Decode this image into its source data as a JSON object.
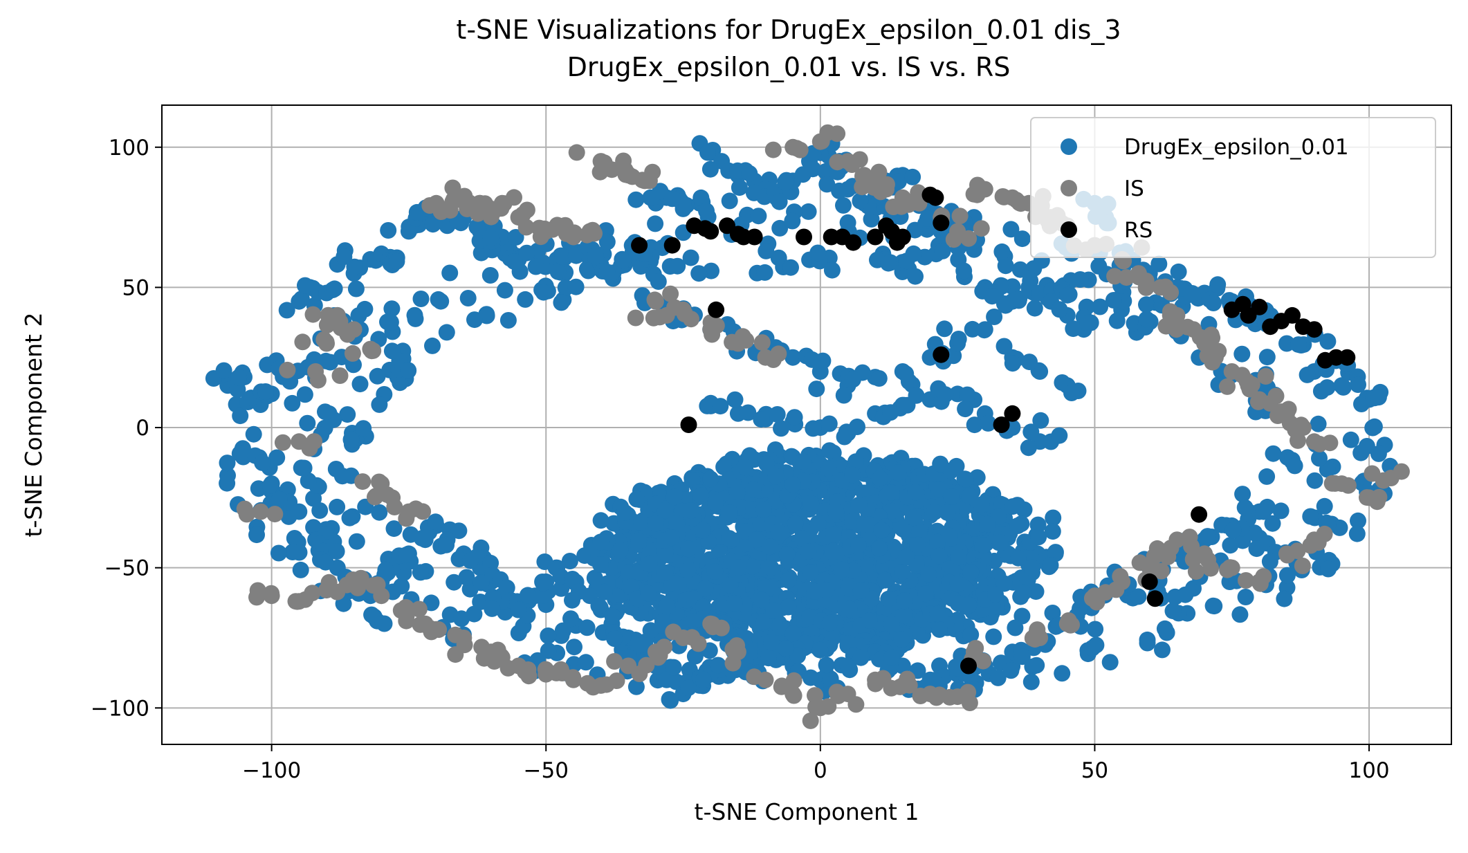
{
  "chart_data": {
    "type": "scatter",
    "title": "t-SNE Visualizations for DrugEx_epsilon_0.01 dis_3",
    "subtitle": "DrugEx_epsilon_0.01 vs. IS vs. RS",
    "xlabel": "t-SNE Component 1",
    "ylabel": "t-SNE Component 2",
    "xlim": [
      -120,
      115
    ],
    "ylim": [
      -113,
      115
    ],
    "xticks": [
      -100,
      -50,
      0,
      50,
      100
    ],
    "xtick_labels": [
      "−100",
      "−50",
      "0",
      "50",
      "100"
    ],
    "yticks": [
      100,
      50,
      0,
      -50,
      -100
    ],
    "ytick_labels": [
      "100",
      "50",
      "0",
      "−50",
      "−100"
    ],
    "grid": true,
    "legend_position": "top-right",
    "series": [
      {
        "name": "DrugEx_epsilon_0.01",
        "color": "#1f77b4",
        "dense_core": {
          "cx": 0,
          "cy": -45,
          "rx": 40,
          "ry": 35
        },
        "ring": {
          "cx": -2,
          "cy": -10,
          "rx": 103,
          "ry": 84
        },
        "x": [
          -108,
          -105,
          -103,
          -100,
          -97,
          -95,
          -93,
          -90,
          -88,
          -85,
          -82,
          -80,
          -78,
          -75,
          -72,
          -70,
          -68,
          -65,
          -62,
          -60,
          -58,
          -55,
          -52,
          -50,
          -48,
          -45,
          -42,
          -40,
          -38,
          -35,
          -32,
          -30,
          -28,
          -25,
          -22,
          -20,
          -18,
          -15,
          -12,
          -10,
          -8,
          -5,
          -2,
          0,
          3,
          5,
          8,
          10,
          12,
          15,
          18,
          20,
          22,
          25,
          28,
          30,
          32,
          35,
          38,
          40,
          42,
          45,
          48,
          50,
          52,
          55,
          60,
          65,
          70,
          75,
          80,
          85,
          90,
          95,
          100,
          -103,
          -100,
          -98,
          -95,
          -92,
          -90,
          -88,
          -85,
          -82,
          -80,
          -78,
          -75,
          -72,
          -70,
          -68,
          -65,
          -62,
          -60,
          -58,
          -55,
          -52,
          -50,
          -48,
          -45,
          -42,
          -40,
          -38,
          -35,
          -32,
          -30,
          -28,
          -25,
          -22,
          -20,
          -15,
          -10,
          -5,
          0,
          5,
          10,
          15,
          20,
          25,
          30,
          35,
          40,
          45,
          50,
          55,
          60,
          65,
          70,
          75,
          80,
          -30,
          -25,
          -20,
          -15,
          -10,
          -5,
          0,
          5,
          10,
          15,
          20,
          25,
          30,
          35,
          40,
          45,
          -20,
          -15,
          -10,
          -5,
          0,
          5,
          10,
          15,
          20,
          25,
          30,
          35,
          40
        ],
        "y": [
          15,
          18,
          10,
          12,
          20,
          45,
          50,
          48,
          40,
          55,
          60,
          62,
          58,
          70,
          75,
          78,
          72,
          75,
          70,
          65,
          68,
          60,
          62,
          58,
          60,
          62,
          60,
          58,
          55,
          60,
          62,
          80,
          82,
          78,
          80,
          98,
          95,
          90,
          88,
          85,
          82,
          88,
          95,
          98,
          92,
          85,
          80,
          82,
          88,
          90,
          80,
          75,
          70,
          72,
          75,
          50,
          48,
          45,
          50,
          48,
          45,
          40,
          35,
          80,
          75,
          60,
          55,
          50,
          48,
          45,
          40,
          30,
          20,
          15,
          10,
          -10,
          -20,
          -25,
          -30,
          -40,
          -45,
          -50,
          -55,
          -60,
          -55,
          -50,
          -45,
          -40,
          -35,
          -40,
          -45,
          -50,
          -55,
          -60,
          -65,
          -60,
          -55,
          -50,
          -55,
          -60,
          -65,
          -70,
          -75,
          -80,
          -85,
          -90,
          -95,
          -92,
          -88,
          -85,
          -80,
          -85,
          -90,
          -85,
          -80,
          -85,
          -90,
          -88,
          -85,
          -80,
          -75,
          -70,
          -60,
          -55,
          -50,
          -45,
          -40,
          -35,
          -30,
          45,
          40,
          35,
          30,
          28,
          25,
          20,
          15,
          18,
          20,
          25,
          30,
          35,
          25,
          20,
          15,
          8,
          5,
          3,
          2,
          0,
          -2,
          5,
          8,
          10,
          12,
          5,
          0,
          -5
        ]
      },
      {
        "name": "IS",
        "color": "#808080",
        "x": [
          -102,
          -95,
          -92,
          -90,
          -88,
          -85,
          -82,
          -80,
          -78,
          -75,
          -70,
          -68,
          -65,
          -62,
          -60,
          -58,
          -55,
          -50,
          -48,
          -45,
          -42,
          -40,
          -38,
          -35,
          -32,
          -30,
          -28,
          -25,
          -20,
          -15,
          -10,
          -5,
          0,
          5,
          8,
          10,
          12,
          15,
          18,
          22,
          25,
          30,
          35,
          38,
          40,
          42,
          45,
          50,
          55,
          58,
          62,
          65,
          68,
          70,
          72,
          75,
          78,
          80,
          85,
          88,
          90,
          95,
          100,
          104,
          -100,
          -95,
          -90,
          -85,
          -80,
          -75,
          -72,
          -70,
          -65,
          -60,
          -58,
          -55,
          -50,
          -45,
          -40,
          -35,
          -30,
          -25,
          -20,
          -15,
          -10,
          -5,
          0,
          5,
          10,
          15,
          20,
          25,
          28,
          40,
          45,
          50,
          55,
          60,
          62,
          65,
          70,
          75,
          80,
          85,
          90
        ],
        "y": [
          -30,
          -5,
          20,
          30,
          40,
          35,
          28,
          -20,
          -25,
          -30,
          80,
          78,
          82,
          80,
          78,
          80,
          75,
          70,
          72,
          68,
          70,
          95,
          92,
          90,
          88,
          45,
          40,
          42,
          35,
          30,
          25,
          100,
          102,
          95,
          90,
          88,
          85,
          82,
          80,
          75,
          70,
          85,
          82,
          80,
          78,
          75,
          72,
          65,
          60,
          55,
          50,
          40,
          35,
          30,
          25,
          20,
          15,
          10,
          5,
          0,
          -5,
          -20,
          -25,
          -18,
          -60,
          -62,
          -58,
          -55,
          -60,
          -65,
          -70,
          -72,
          -75,
          -80,
          -82,
          -85,
          -88,
          -90,
          -92,
          -85,
          -80,
          -75,
          -70,
          -80,
          -90,
          -95,
          -100,
          -95,
          -90,
          -92,
          -95,
          -96,
          -80,
          -75,
          -70,
          -60,
          -55,
          -50,
          -45,
          -40,
          -45,
          -50,
          -55,
          -45,
          -40
        ]
      },
      {
        "name": "RS",
        "color": "#000000",
        "x": [
          -33,
          -27,
          -23,
          -21,
          -20,
          -17,
          -15,
          -14,
          -12,
          -3,
          2,
          4,
          6,
          10,
          12,
          13,
          14,
          15,
          20,
          21,
          22,
          75,
          77,
          78,
          80,
          82,
          84,
          86,
          88,
          90,
          92,
          94,
          96,
          -19,
          22,
          -24,
          33,
          35,
          69,
          60,
          61,
          27
        ],
        "y": [
          65,
          65,
          72,
          71,
          70,
          72,
          69,
          68,
          68,
          68,
          68,
          68,
          66,
          68,
          72,
          70,
          66,
          68,
          83,
          82,
          73,
          42,
          44,
          40,
          43,
          36,
          38,
          40,
          36,
          35,
          24,
          25,
          25,
          42,
          26,
          1,
          1,
          5,
          -31,
          -55,
          -61,
          -85
        ]
      }
    ]
  }
}
